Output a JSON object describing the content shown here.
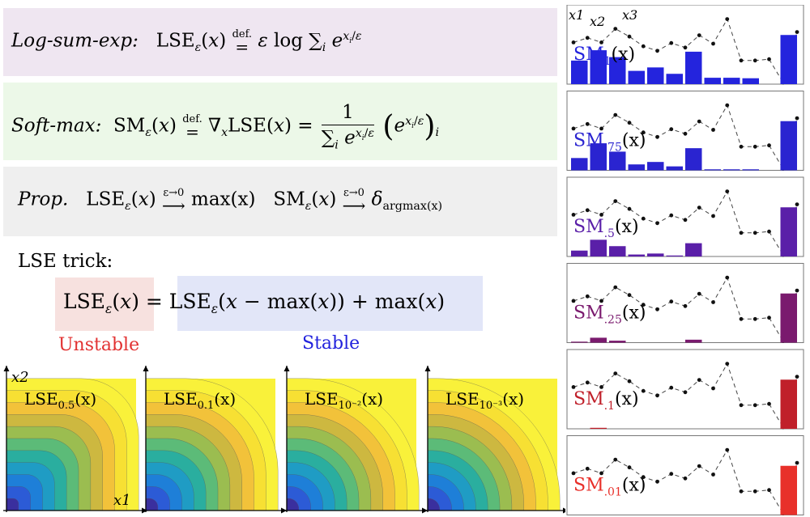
{
  "definitions": {
    "lse_label": "Log-sum-exp:",
    "sm_label": "Soft-max:",
    "prop_label": "Prop.",
    "def_text": "def.",
    "limit_text": "ε→0",
    "argmax_text": "argmax(x)",
    "max_text": "max(x)",
    "numerator": "1"
  },
  "trick": {
    "title": "LSE trick:",
    "unstable_label": "Unstable",
    "stable_label": "Stable"
  },
  "contour_plots": {
    "axis_x1": "x1",
    "axis_x2": "x2",
    "plots": [
      {
        "eps_sub": "0.5"
      },
      {
        "eps_sub": "0.1"
      },
      {
        "eps_sub": "10⁻²"
      },
      {
        "eps_sub": "10⁻³"
      }
    ]
  },
  "softmax_panels": {
    "point_labels": [
      "x1",
      "x2",
      "x3"
    ],
    "points": [
      0.57,
      0.64,
      0.57,
      0.78,
      0.66,
      0.51,
      0.44,
      0.56,
      0.49,
      0.68,
      0.55,
      0.93,
      0.29,
      0.29,
      0.31,
      -0.05,
      0.73
    ],
    "panels": [
      {
        "eps": "1",
        "color": "#2424dd",
        "bars": [
          0.48,
          0.69,
          0.55,
          0.27,
          0.34,
          0.21,
          0.66,
          0.13,
          0.13,
          0.12,
          0.0,
          1.0
        ]
      },
      {
        "eps": ".75",
        "color": "#2a24d0",
        "bars": [
          0.25,
          0.55,
          0.38,
          0.12,
          0.17,
          0.08,
          0.45,
          0.02,
          0.02,
          0.02,
          0.0,
          1.0
        ]
      },
      {
        "eps": ".5",
        "color": "#5a1fa8",
        "bars": [
          0.12,
          0.34,
          0.21,
          0.04,
          0.06,
          0.02,
          0.27,
          0.0,
          0.0,
          0.0,
          0.0,
          1.0
        ]
      },
      {
        "eps": ".25",
        "color": "#7a1a6e",
        "bars": [
          0.02,
          0.1,
          0.04,
          0.0,
          0.0,
          0.0,
          0.06,
          0.0,
          0.0,
          0.0,
          0.0,
          1.0
        ]
      },
      {
        "eps": ".1",
        "color": "#c0202a",
        "bars": [
          0.0,
          0.02,
          0.0,
          0.0,
          0.0,
          0.0,
          0.0,
          0.0,
          0.0,
          0.0,
          0.0,
          1.0
        ]
      },
      {
        "eps": ".01",
        "color": "#e8302a",
        "bars": [
          0.0,
          0.0,
          0.0,
          0.0,
          0.0,
          0.0,
          0.0,
          0.0,
          0.0,
          0.0,
          0.0,
          1.0
        ]
      }
    ]
  }
}
